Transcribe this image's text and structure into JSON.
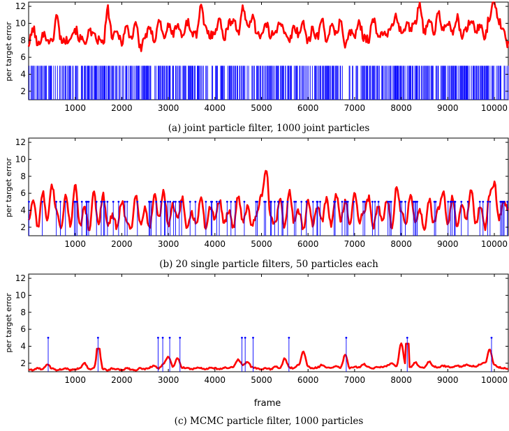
{
  "chart_data": [
    {
      "type": "line",
      "caption": "(a) joint particle filter, 1000 joint particles",
      "xlabel": "",
      "ylabel": "per target error",
      "xlim": [
        0,
        10300
      ],
      "ylim": [
        1,
        12.5
      ],
      "xticks": [
        1000,
        2000,
        3000,
        4000,
        5000,
        6000,
        7000,
        8000,
        9000,
        10000
      ],
      "yticks": [
        2,
        4,
        6,
        8,
        10,
        12
      ],
      "grid": false,
      "series": [
        {
          "kind": "line",
          "color": "#ff0000",
          "x": [
            0,
            100,
            200,
            300,
            400,
            500,
            600,
            700,
            800,
            900,
            1000,
            1100,
            1200,
            1300,
            1400,
            1500,
            1600,
            1700,
            1800,
            1900,
            2000,
            2100,
            2200,
            2300,
            2400,
            2500,
            2600,
            2700,
            2800,
            2900,
            3000,
            3100,
            3200,
            3300,
            3400,
            3500,
            3600,
            3700,
            3800,
            3900,
            4000,
            4100,
            4200,
            4300,
            4400,
            4500,
            4600,
            4700,
            4800,
            4900,
            5000,
            5100,
            5200,
            5300,
            5400,
            5500,
            5600,
            5700,
            5800,
            5900,
            6000,
            6100,
            6200,
            6300,
            6400,
            6500,
            6600,
            6700,
            6800,
            6900,
            7000,
            7100,
            7200,
            7300,
            7400,
            7500,
            7600,
            7700,
            7800,
            7900,
            8000,
            8100,
            8200,
            8300,
            8400,
            8500,
            8600,
            8700,
            8800,
            8900,
            9000,
            9100,
            9200,
            9300,
            9400,
            9500,
            9600,
            9700,
            9800,
            9900,
            10000,
            10100,
            10200,
            10300
          ],
          "y": [
            7.5,
            9.4,
            7.3,
            8.8,
            8.2,
            7.7,
            10.8,
            8.1,
            7.9,
            8.6,
            9.3,
            8.2,
            7.8,
            9.0,
            8.4,
            8.0,
            7.6,
            11.6,
            8.3,
            8.9,
            7.9,
            9.6,
            8.2,
            10.2,
            7.0,
            8.5,
            9.2,
            8.1,
            10.5,
            8.4,
            9.6,
            8.8,
            9.9,
            8.3,
            10.3,
            9.0,
            8.6,
            11.8,
            9.4,
            8.5,
            9.2,
            10.3,
            8.4,
            9.9,
            10.6,
            8.9,
            11.6,
            9.8,
            10.8,
            9.0,
            8.6,
            9.8,
            8.5,
            9.2,
            10.3,
            8.6,
            7.9,
            9.6,
            8.8,
            10.1,
            7.8,
            9.2,
            8.5,
            10.3,
            8.2,
            9.5,
            8.7,
            10.4,
            7.4,
            8.9,
            8.6,
            9.9,
            8.4,
            8.2,
            10.5,
            8.3,
            9.1,
            8.7,
            9.6,
            10.8,
            8.9,
            9.7,
            9.5,
            10.2,
            12.4,
            9.0,
            10.6,
            8.8,
            11.2,
            9.1,
            10.3,
            8.6,
            10.7,
            8.4,
            9.2,
            10.5,
            9.0,
            9.7,
            8.5,
            10.9,
            12.6,
            10.2,
            9.4,
            7.5
          ]
        },
        {
          "kind": "stem",
          "color": "#0000ff",
          "value": 5,
          "marker": false,
          "density": 0.6
        }
      ]
    },
    {
      "type": "line",
      "caption": "(b) 20 single particle filters, 50 particles each",
      "xlabel": "",
      "ylabel": "per target error",
      "xlim": [
        0,
        10300
      ],
      "ylim": [
        1,
        12.5
      ],
      "xticks": [
        1000,
        2000,
        3000,
        4000,
        5000,
        6000,
        7000,
        8000,
        9000,
        10000
      ],
      "yticks": [
        2,
        4,
        6,
        8,
        10,
        12
      ],
      "grid": false,
      "series": [
        {
          "kind": "line",
          "color": "#ff0000",
          "x": [
            0,
            100,
            200,
            300,
            400,
            500,
            600,
            700,
            800,
            900,
            1000,
            1100,
            1200,
            1300,
            1400,
            1500,
            1600,
            1700,
            1800,
            1900,
            2000,
            2100,
            2200,
            2300,
            2400,
            2500,
            2600,
            2700,
            2800,
            2900,
            3000,
            3100,
            3200,
            3300,
            3400,
            3500,
            3600,
            3700,
            3800,
            3900,
            4000,
            4100,
            4200,
            4300,
            4400,
            4500,
            4600,
            4700,
            4800,
            4900,
            5000,
            5100,
            5200,
            5300,
            5400,
            5500,
            5600,
            5700,
            5800,
            5900,
            6000,
            6100,
            6200,
            6300,
            6400,
            6500,
            6600,
            6700,
            6800,
            6900,
            7000,
            7100,
            7200,
            7300,
            7400,
            7500,
            7600,
            7700,
            7800,
            7900,
            8000,
            8100,
            8200,
            8300,
            8400,
            8500,
            8600,
            8700,
            8800,
            8900,
            9000,
            9100,
            9200,
            9300,
            9400,
            9500,
            9600,
            9700,
            9800,
            9900,
            10000,
            10100,
            10200,
            10300
          ],
          "y": [
            3.0,
            5.3,
            2.0,
            6.2,
            2.6,
            7.0,
            3.8,
            1.9,
            5.6,
            2.3,
            7.0,
            2.1,
            4.4,
            1.8,
            6.0,
            2.4,
            5.8,
            2.1,
            3.5,
            2.0,
            5.1,
            2.7,
            1.9,
            5.8,
            2.3,
            4.3,
            1.8,
            5.9,
            3.1,
            6.2,
            2.2,
            4.6,
            2.8,
            5.4,
            2.0,
            3.6,
            2.4,
            5.6,
            2.1,
            4.3,
            3.0,
            5.2,
            2.4,
            3.9,
            2.0,
            5.6,
            2.8,
            4.4,
            2.2,
            3.5,
            5.9,
            8.9,
            3.2,
            2.3,
            5.4,
            2.0,
            6.1,
            2.6,
            3.9,
            1.9,
            5.1,
            2.3,
            4.5,
            2.7,
            5.4,
            2.2,
            6.0,
            2.8,
            5.0,
            2.3,
            6.2,
            2.7,
            3.8,
            5.5,
            2.0,
            4.5,
            2.6,
            5.3,
            2.1,
            6.7,
            3.8,
            2.4,
            5.7,
            2.6,
            4.1,
            2.0,
            5.2,
            2.5,
            4.3,
            6.2,
            2.4,
            5.6,
            2.2,
            4.7,
            2.8,
            6.6,
            2.3,
            4.5,
            1.9,
            5.9,
            7.2,
            3.0,
            5.0,
            4.0
          ]
        },
        {
          "kind": "stem",
          "color": "#0000ff",
          "value": 5,
          "marker": true,
          "density": 0.28
        }
      ]
    },
    {
      "type": "line",
      "caption": "(c) MCMC particle filter, 1000 particles",
      "xlabel": "frame",
      "ylabel": "per target error",
      "xlim": [
        0,
        10300
      ],
      "ylim": [
        1,
        12.5
      ],
      "xticks": [
        1000,
        2000,
        3000,
        4000,
        5000,
        6000,
        7000,
        8000,
        9000,
        10000
      ],
      "yticks": [
        2,
        4,
        6,
        8,
        10,
        12
      ],
      "grid": false,
      "series": [
        {
          "kind": "line",
          "color": "#ff0000",
          "x": [
            0,
            100,
            200,
            300,
            400,
            500,
            600,
            700,
            800,
            900,
            1000,
            1100,
            1200,
            1300,
            1400,
            1500,
            1600,
            1700,
            1800,
            1900,
            2000,
            2100,
            2200,
            2300,
            2400,
            2500,
            2600,
            2700,
            2800,
            2900,
            3000,
            3100,
            3200,
            3300,
            3400,
            3500,
            3600,
            3700,
            3800,
            3900,
            4000,
            4100,
            4200,
            4300,
            4400,
            4500,
            4600,
            4700,
            4800,
            4900,
            5000,
            5100,
            5200,
            5300,
            5400,
            5500,
            5600,
            5700,
            5800,
            5900,
            6000,
            6100,
            6200,
            6300,
            6400,
            6500,
            6600,
            6700,
            6800,
            6900,
            7000,
            7100,
            7200,
            7300,
            7400,
            7500,
            7600,
            7700,
            7800,
            7900,
            8000,
            8100,
            8200,
            8300,
            8400,
            8500,
            8600,
            8700,
            8800,
            8900,
            9000,
            9100,
            9200,
            9300,
            9400,
            9500,
            9600,
            9700,
            9800,
            9900,
            10000,
            10100,
            10200,
            10300
          ],
          "y": [
            1.3,
            1.2,
            1.4,
            1.3,
            1.9,
            1.4,
            1.2,
            1.3,
            1.4,
            1.2,
            1.3,
            1.4,
            2.0,
            1.3,
            1.4,
            3.7,
            1.3,
            1.2,
            1.4,
            1.3,
            1.2,
            1.4,
            1.3,
            1.2,
            1.4,
            1.3,
            1.5,
            1.7,
            1.4,
            2.0,
            2.8,
            1.6,
            2.6,
            1.5,
            1.4,
            1.3,
            1.5,
            1.4,
            1.3,
            1.5,
            1.4,
            1.3,
            1.5,
            1.4,
            1.6,
            2.4,
            1.8,
            2.2,
            1.5,
            1.4,
            1.3,
            1.4,
            1.3,
            1.6,
            1.4,
            2.6,
            1.5,
            1.4,
            1.8,
            3.4,
            1.6,
            1.4,
            1.5,
            1.8,
            1.5,
            1.4,
            1.6,
            1.5,
            3.0,
            1.4,
            1.6,
            1.5,
            1.9,
            1.5,
            1.4,
            1.6,
            1.5,
            1.7,
            2.0,
            1.6,
            4.3,
            1.7,
            1.5,
            2.1,
            1.6,
            1.5,
            2.2,
            1.6,
            1.5,
            1.7,
            1.6,
            1.5,
            1.7,
            1.6,
            1.8,
            1.7,
            1.6,
            1.9,
            2.0,
            3.6,
            1.8,
            1.5,
            1.4,
            1.3
          ],
          "spikes": [
            [
              1490,
              3.7
            ],
            [
              8140,
              4.3
            ]
          ]
        },
        {
          "kind": "stem",
          "color": "#0000ff",
          "value": 5,
          "marker": true,
          "x": [
            420,
            1490,
            2780,
            2880,
            3030,
            3250,
            4580,
            4650,
            4820,
            5590,
            6820,
            8130,
            9940
          ]
        }
      ]
    }
  ]
}
